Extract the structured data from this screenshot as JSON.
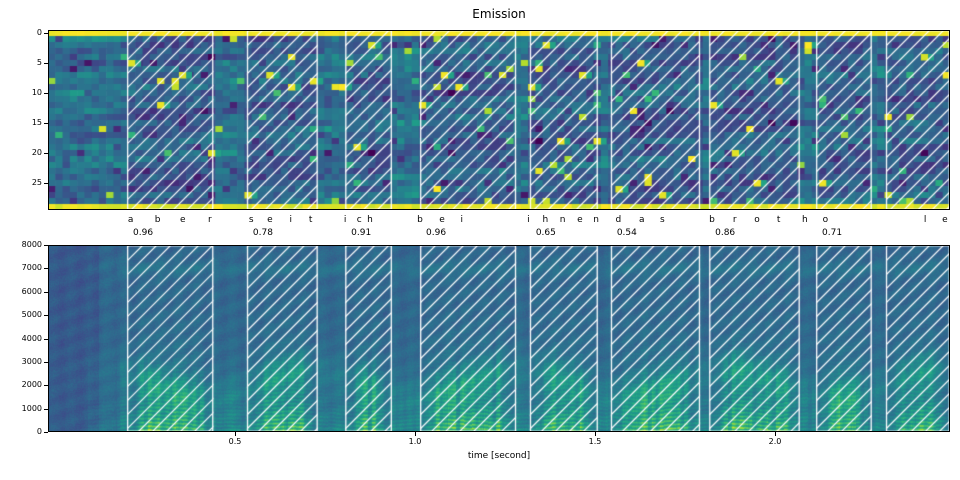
{
  "figure": {
    "title": "Emission",
    "xlabel": "time [second]",
    "background": "#ffffff",
    "text_color": "#000000",
    "hatch_color": "#ffffff"
  },
  "chart_data": [
    {
      "type": "heatmap",
      "name": "emission-probabilities",
      "title": "Emission",
      "colormap": "viridis",
      "rows": 30,
      "cols": 124,
      "y_ticks": [
        0,
        5,
        10,
        15,
        20,
        25
      ],
      "y_axis_direction": "top-down",
      "legend": "off",
      "grid": "off",
      "notes": "CTC emission matrix (token index vs frame). Blank row 0 and last row are saturated yellow; sparse bright cells mark emitted characters; white hatched spans mark aligned words."
    },
    {
      "type": "heatmap",
      "name": "spectrogram",
      "colormap": "viridis",
      "xlabel": "time [second]",
      "xlim": [
        0,
        2.48
      ],
      "ylim": [
        0,
        8000
      ],
      "x_ticks": [
        {
          "value": 0.5,
          "label": "0.5"
        },
        {
          "value": 1.0,
          "label": "1.0"
        },
        {
          "value": 1.5,
          "label": "1.5"
        },
        {
          "value": 2.0,
          "label": "2.0"
        }
      ],
      "y_ticks": [
        0,
        1000,
        2000,
        3000,
        4000,
        5000,
        6000,
        7000,
        8000
      ],
      "legend": "off",
      "grid": "off",
      "notes": "Speech spectrogram (frequency in Hz vs time). White hatched spans mark aligned word segments."
    }
  ],
  "alignment": {
    "transcript": "aber seit ich bei ihnen das brot hole",
    "words": [
      {
        "word": "aber",
        "score": "0.96",
        "spans": [
          [
            0.2,
            0.44
          ]
        ],
        "chars": [
          {
            "c": "a",
            "t": 0.21
          },
          {
            "c": "b",
            "t": 0.285
          },
          {
            "c": "e",
            "t": 0.355
          },
          {
            "c": "r",
            "t": 0.43
          }
        ]
      },
      {
        "word": "seit",
        "score": "0.78",
        "spans": [
          [
            0.533,
            0.73
          ]
        ],
        "chars": [
          {
            "c": "s",
            "t": 0.545
          },
          {
            "c": "e",
            "t": 0.597
          },
          {
            "c": "i",
            "t": 0.655
          },
          {
            "c": "t",
            "t": 0.71
          }
        ]
      },
      {
        "word": "ich",
        "score": "0.91",
        "spans": [
          [
            0.806,
            0.936
          ]
        ],
        "chars": [
          {
            "c": "i",
            "t": 0.806
          },
          {
            "c": "c",
            "t": 0.845
          },
          {
            "c": "h",
            "t": 0.875
          }
        ]
      },
      {
        "word": "bei",
        "score": "0.96",
        "spans": [
          [
            1.014,
            1.281
          ]
        ],
        "chars": [
          {
            "c": "b",
            "t": 1.014
          },
          {
            "c": "e",
            "t": 1.075
          },
          {
            "c": "i",
            "t": 1.13
          }
        ]
      },
      {
        "word": "ihnen",
        "score": "0.65",
        "spans": [
          [
            1.319,
            1.508
          ]
        ],
        "chars": [
          {
            "c": "i",
            "t": 1.315
          },
          {
            "c": "h",
            "t": 1.362
          },
          {
            "c": "n",
            "t": 1.41
          },
          {
            "c": "e",
            "t": 1.458
          },
          {
            "c": "n",
            "t": 1.503
          }
        ]
      },
      {
        "word": "das",
        "score": "0.54",
        "spans": [
          [
            1.544,
            1.792
          ]
        ],
        "chars": [
          {
            "c": "d",
            "t": 1.565
          },
          {
            "c": "a",
            "t": 1.63
          },
          {
            "c": "s",
            "t": 1.687
          }
        ]
      },
      {
        "word": "brot",
        "score": "0.86",
        "spans": [
          [
            1.817,
            2.069
          ]
        ],
        "chars": [
          {
            "c": "b",
            "t": 1.825
          },
          {
            "c": "r",
            "t": 1.888
          },
          {
            "c": "o",
            "t": 1.95
          },
          {
            "c": "t",
            "t": 2.01
          }
        ]
      },
      {
        "word": "hole",
        "score": "0.71",
        "spans": [
          [
            2.114,
            2.269
          ],
          [
            2.308,
            2.486
          ]
        ],
        "chars": [
          {
            "c": "h",
            "t": 2.083
          },
          {
            "c": "o",
            "t": 2.14
          },
          {
            "c": "l",
            "t": 2.417
          },
          {
            "c": "e",
            "t": 2.472
          }
        ]
      }
    ]
  }
}
